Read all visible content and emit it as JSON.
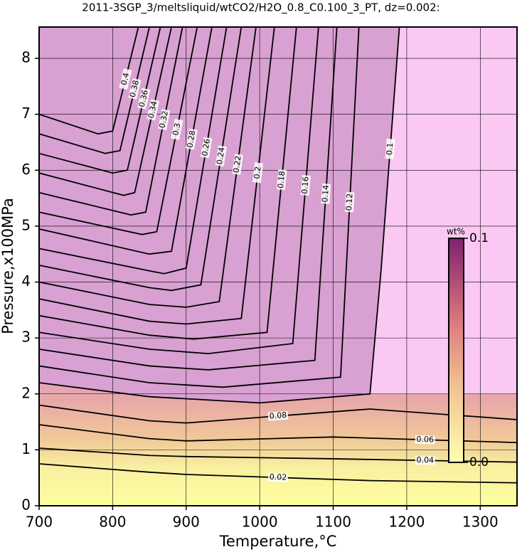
{
  "chart_data": {
    "type": "contour",
    "title": "2011-3SGP_3/meltsliquid/wtCO2/H2O_0.8_C0.100_3_PT, dz=0.002:",
    "x_label": "Temperature,°C",
    "y_label": "Pressure,x100MPa",
    "xlim": [
      700,
      1350
    ],
    "ylim": [
      0,
      8.56
    ],
    "xticks": [
      700,
      800,
      900,
      1000,
      1100,
      1200,
      1300
    ],
    "yticks": [
      0,
      1,
      2,
      3,
      4,
      5,
      6,
      7,
      8
    ],
    "grid": true,
    "contours": [
      {
        "level": 0.02,
        "x": [
          700,
          850,
          900,
          1150,
          1350
        ],
        "y": [
          0.75,
          0.6,
          0.56,
          0.45,
          0.41
        ]
      },
      {
        "level": 0.04,
        "x": [
          700,
          850,
          900,
          1100,
          1350
        ],
        "y": [
          1.03,
          0.9,
          0.88,
          0.84,
          0.78
        ]
      },
      {
        "level": 0.06,
        "x": [
          700,
          850,
          900,
          1100,
          1350
        ],
        "y": [
          1.45,
          1.2,
          1.16,
          1.23,
          1.13
        ]
      },
      {
        "level": 0.08,
        "x": [
          700,
          850,
          900,
          1150,
          1350
        ],
        "y": [
          1.8,
          1.52,
          1.48,
          1.73,
          1.54
        ]
      },
      {
        "level": 0.1,
        "x": [
          700,
          850,
          1000,
          1150,
          1165,
          1190
        ],
        "y": [
          2.2,
          1.95,
          1.84,
          2.0,
          4.2,
          8.56
        ]
      },
      {
        "level": 0.12,
        "x": [
          700,
          850,
          950,
          1110,
          1135
        ],
        "y": [
          2.5,
          2.2,
          2.12,
          2.3,
          8.56
        ]
      },
      {
        "level": 0.14,
        "x": [
          700,
          850,
          930,
          1075,
          1105
        ],
        "y": [
          2.8,
          2.5,
          2.43,
          2.6,
          8.56
        ]
      },
      {
        "level": 0.16,
        "x": [
          700,
          850,
          930,
          1045,
          1080
        ],
        "y": [
          3.1,
          2.8,
          2.72,
          2.9,
          8.56
        ]
      },
      {
        "level": 0.18,
        "x": [
          700,
          850,
          910,
          1010,
          1050
        ],
        "y": [
          3.4,
          3.05,
          2.98,
          3.1,
          8.56
        ]
      },
      {
        "level": 0.2,
        "x": [
          700,
          850,
          900,
          975,
          1020
        ],
        "y": [
          3.7,
          3.3,
          3.25,
          3.35,
          8.56
        ]
      },
      {
        "level": 0.22,
        "x": [
          700,
          850,
          900,
          945,
          995
        ],
        "y": [
          4.0,
          3.6,
          3.55,
          3.65,
          8.56
        ]
      },
      {
        "level": 0.24,
        "x": [
          700,
          850,
          880,
          920,
          975
        ],
        "y": [
          4.3,
          3.9,
          3.85,
          3.95,
          8.56
        ]
      },
      {
        "level": 0.26,
        "x": [
          700,
          850,
          870,
          900,
          955
        ],
        "y": [
          4.6,
          4.2,
          4.15,
          4.25,
          8.56
        ]
      },
      {
        "level": 0.28,
        "x": [
          700,
          850,
          880,
          935
        ],
        "y": [
          4.95,
          4.5,
          4.55,
          8.56
        ]
      },
      {
        "level": 0.3,
        "x": [
          700,
          840,
          860,
          915
        ],
        "y": [
          5.25,
          4.85,
          4.9,
          8.56
        ]
      },
      {
        "level": 0.32,
        "x": [
          700,
          825,
          845,
          895
        ],
        "y": [
          5.6,
          5.2,
          5.25,
          8.56
        ]
      },
      {
        "level": 0.34,
        "x": [
          700,
          815,
          830,
          880
        ],
        "y": [
          5.95,
          5.55,
          5.6,
          8.56
        ]
      },
      {
        "level": 0.36,
        "x": [
          700,
          800,
          820,
          865
        ],
        "y": [
          6.3,
          5.95,
          6.0,
          8.56
        ]
      },
      {
        "level": 0.38,
        "x": [
          700,
          790,
          810,
          850
        ],
        "y": [
          6.65,
          6.3,
          6.35,
          8.56
        ]
      },
      {
        "level": 0.4,
        "x": [
          700,
          780,
          800,
          835
        ],
        "y": [
          7.0,
          6.65,
          6.7,
          8.56
        ]
      }
    ],
    "colorbar": {
      "title": "wt%",
      "ticks": [
        {
          "value": 0,
          "label": "0.0"
        },
        0.1
      ]
    }
  }
}
